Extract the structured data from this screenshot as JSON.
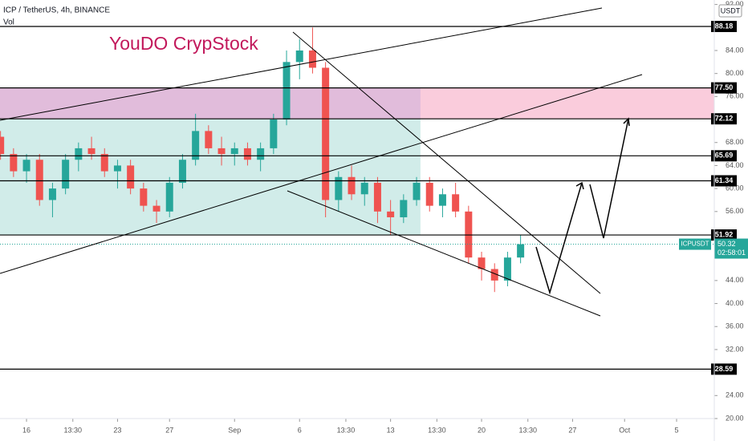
{
  "chart_data": {
    "type": "candlestick",
    "title": "ICP / TetherUS, 4h, BINANCE",
    "subtitle": "Vol",
    "annotation": "YouDO CrypStock",
    "currency": "USDT",
    "up_color": "#26a69a",
    "down_color": "#ef5350",
    "x": [
      13,
      14,
      15,
      16,
      17,
      18,
      19,
      20,
      21,
      22,
      23,
      24,
      25,
      26,
      27,
      28,
      29,
      30,
      31,
      32,
      33,
      34,
      35,
      36,
      37,
      38,
      39,
      40,
      41,
      42,
      43,
      44,
      45,
      46,
      47,
      48,
      49,
      50,
      51,
      52,
      53
    ],
    "open": [
      69,
      66,
      63,
      65,
      58,
      60,
      65,
      67,
      66,
      63,
      64,
      60,
      57,
      56,
      61,
      65,
      70,
      67,
      66,
      67,
      65,
      67,
      72,
      82,
      84,
      81,
      58,
      62,
      59,
      61,
      56,
      55,
      58,
      61,
      57,
      59,
      56,
      48,
      46,
      44,
      48
    ],
    "high": [
      70,
      67,
      66,
      66,
      61,
      66,
      68,
      69,
      67,
      65,
      65,
      61,
      58,
      62,
      66,
      73,
      71,
      69,
      68,
      68,
      68,
      73,
      84,
      86,
      88,
      82,
      63,
      64,
      62,
      62,
      58,
      59,
      62,
      62,
      60,
      61,
      57,
      49,
      47,
      49,
      52
    ],
    "low": [
      65,
      62,
      61,
      57,
      55,
      59,
      63,
      65,
      62,
      60,
      59,
      56,
      54,
      55,
      60,
      64,
      66,
      64,
      64,
      64,
      63,
      66,
      71,
      79,
      80,
      55,
      56,
      58,
      57,
      54,
      52,
      54,
      57,
      56,
      55,
      55,
      47,
      44,
      42,
      43,
      47
    ],
    "close": [
      66,
      63,
      65,
      58,
      60,
      65,
      67,
      66,
      63,
      64,
      60,
      57,
      56,
      61,
      65,
      70,
      67,
      66,
      67,
      65,
      67,
      72,
      82,
      84,
      81,
      58,
      62,
      59,
      61,
      56,
      55,
      58,
      61,
      57,
      59,
      56,
      48,
      46,
      44,
      48,
      50.32
    ],
    "xlim": [
      12.96,
      67.9
    ],
    "xticks": [
      {
        "value": 15,
        "label": "16"
      },
      {
        "value": 18.5625,
        "label": "13:30"
      },
      {
        "value": 22,
        "label": "23"
      },
      {
        "value": 26,
        "label": "27"
      },
      {
        "value": 31,
        "label": "Sep"
      },
      {
        "value": 36,
        "label": "6"
      },
      {
        "value": 39.5625,
        "label": "13:30"
      },
      {
        "value": 43,
        "label": "13"
      },
      {
        "value": 46.5625,
        "label": "13:30"
      },
      {
        "value": 50,
        "label": "20"
      },
      {
        "value": 53.5625,
        "label": "13:30"
      },
      {
        "value": 57,
        "label": "27"
      },
      {
        "value": 61,
        "label": "Oct"
      },
      {
        "value": 65,
        "label": "5"
      }
    ],
    "ylim": [
      20,
      92
    ],
    "yticks": [
      {
        "value": 92,
        "label": "92.00"
      },
      {
        "value": 84,
        "label": "84.00"
      },
      {
        "value": 80,
        "label": "80.00"
      },
      {
        "value": 76,
        "label": "76.00"
      },
      {
        "value": 68,
        "label": "68.00"
      },
      {
        "value": 64,
        "label": "64.00"
      },
      {
        "value": 60,
        "label": "60.00"
      },
      {
        "value": 56,
        "label": "56.00"
      },
      {
        "value": 44,
        "label": "44.00"
      },
      {
        "value": 40,
        "label": "40.00"
      },
      {
        "value": 36,
        "label": "36.00"
      },
      {
        "value": 32,
        "label": "32.00"
      },
      {
        "value": 24,
        "label": "24.00"
      },
      {
        "value": 20,
        "label": "20.00"
      }
    ],
    "levels": [
      88.18,
      {
        "value": 77.5,
        "label": "77.50"
      },
      72.12,
      65.69,
      61.34,
      51.92,
      28.59
    ],
    "last_price": {
      "symbol": "ICPUSDT",
      "value": 50.32,
      "countdown": "02:58:01"
    }
  }
}
